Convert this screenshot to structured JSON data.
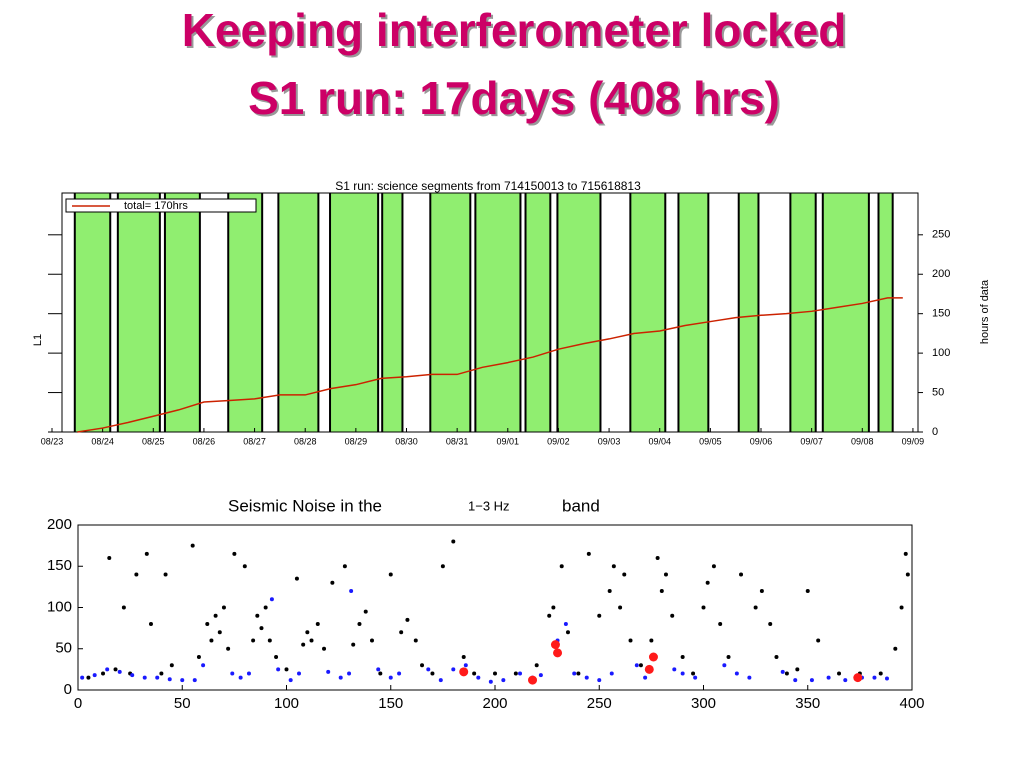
{
  "slide": {
    "title": [
      "Keeping interferometer locked",
      "S1 run: 17days (408 hrs)"
    ]
  },
  "chart_data": [
    {
      "type": "line",
      "title": "S1 run: science segments from 714150013 to 715618813",
      "ylabel": "L1",
      "y2label": "hours of data",
      "legend": "upper left",
      "xlim": [
        0,
        17.1
      ],
      "xticks": [
        {
          "value": 0,
          "label": "08/23"
        },
        {
          "value": 1,
          "label": "08/24"
        },
        {
          "value": 2,
          "label": "08/25"
        },
        {
          "value": 3,
          "label": "08/26"
        },
        {
          "value": 4,
          "label": "08/27"
        },
        {
          "value": 5,
          "label": "08/28"
        },
        {
          "value": 6,
          "label": "08/29"
        },
        {
          "value": 7,
          "label": "08/30"
        },
        {
          "value": 8,
          "label": "08/31"
        },
        {
          "value": 9,
          "label": "09/01"
        },
        {
          "value": 10,
          "label": "09/02"
        },
        {
          "value": 11,
          "label": "09/03"
        },
        {
          "value": 12,
          "label": "09/04"
        },
        {
          "value": 13,
          "label": "09/05"
        },
        {
          "value": 14,
          "label": "09/06"
        },
        {
          "value": 15,
          "label": "09/07"
        },
        {
          "value": 16,
          "label": "09/08"
        },
        {
          "value": 17,
          "label": "09/09"
        }
      ],
      "y2lim": [
        0,
        303
      ],
      "y2ticks": [
        0,
        50,
        100,
        150,
        200,
        250
      ],
      "segment_color": "#90ee70",
      "segments": [
        [
          0.45,
          1.15
        ],
        [
          1.3,
          2.13
        ],
        [
          2.23,
          2.92
        ],
        [
          3.48,
          4.15
        ],
        [
          4.47,
          5.26
        ],
        [
          5.49,
          6.44
        ],
        [
          6.52,
          6.92
        ],
        [
          7.47,
          8.26
        ],
        [
          8.36,
          9.25
        ],
        [
          9.35,
          9.84
        ],
        [
          9.98,
          10.83
        ],
        [
          11.42,
          12.11
        ],
        [
          12.37,
          12.96
        ],
        [
          13.56,
          13.95
        ],
        [
          14.58,
          15.08
        ],
        [
          15.22,
          16.13
        ],
        [
          16.32,
          16.6
        ]
      ],
      "series": [
        {
          "name": "total= 170hrs",
          "color": "#cc2200",
          "axis": "y2",
          "x": [
            0.5,
            1,
            1.5,
            2,
            2.5,
            3,
            3.5,
            4,
            4.5,
            5,
            5.5,
            6,
            6.5,
            7,
            7.5,
            8,
            8.5,
            9,
            9.5,
            10,
            10.5,
            11,
            11.5,
            12,
            12.5,
            13,
            13.5,
            14,
            14.5,
            15,
            15.5,
            16,
            16.5,
            16.8
          ],
          "values": [
            0,
            5,
            12,
            20,
            28,
            38,
            40,
            42,
            47,
            47,
            55,
            60,
            68,
            70,
            73,
            73,
            82,
            88,
            95,
            105,
            112,
            118,
            125,
            128,
            135,
            140,
            145,
            148,
            150,
            153,
            158,
            163,
            170,
            170
          ]
        }
      ]
    },
    {
      "type": "scatter",
      "title": [
        "Seismic Noise in the",
        "1−3 Hz",
        "band"
      ],
      "xlim": [
        0,
        400
      ],
      "xticks": [
        0,
        50,
        100,
        150,
        200,
        250,
        300,
        350,
        400
      ],
      "ylim": [
        0,
        200
      ],
      "yticks": [
        0,
        50,
        100,
        150,
        200
      ],
      "series": [
        {
          "color": "#000000",
          "x": [
            5,
            12,
            15,
            18,
            22,
            25,
            28,
            33,
            35,
            40,
            42,
            45,
            55,
            58,
            62,
            64,
            66,
            68,
            70,
            72,
            75,
            80,
            84,
            86,
            88,
            90,
            92,
            95,
            100,
            105,
            108,
            110,
            112,
            115,
            118,
            122,
            128,
            132,
            135,
            138,
            141,
            145,
            150,
            155,
            158,
            162,
            165,
            170,
            175,
            180,
            185,
            190,
            200,
            210,
            220,
            226,
            228,
            232,
            235,
            240,
            245,
            250,
            255,
            257,
            260,
            262,
            265,
            270,
            275,
            278,
            280,
            282,
            285,
            290,
            295,
            300,
            302,
            305,
            308,
            312,
            318,
            325,
            328,
            332,
            335,
            340,
            345,
            350,
            355,
            365,
            375,
            385,
            392,
            395,
            398,
            397
          ],
          "y": [
            15,
            20,
            160,
            25,
            100,
            20,
            140,
            165,
            80,
            20,
            140,
            30,
            175,
            40,
            80,
            60,
            90,
            70,
            100,
            50,
            165,
            150,
            60,
            90,
            75,
            100,
            60,
            40,
            25,
            135,
            55,
            70,
            60,
            80,
            50,
            130,
            150,
            55,
            80,
            95,
            60,
            20,
            140,
            70,
            85,
            60,
            30,
            20,
            150,
            180,
            40,
            20,
            20,
            20,
            30,
            90,
            100,
            150,
            70,
            20,
            165,
            90,
            120,
            150,
            100,
            140,
            60,
            30,
            60,
            160,
            120,
            140,
            90,
            40,
            20,
            100,
            130,
            150,
            80,
            40,
            140,
            100,
            120,
            80,
            40,
            20,
            25,
            120,
            60,
            20,
            20,
            20,
            50,
            100,
            140,
            165
          ]
        },
        {
          "color": "#1a1aff",
          "x": [
            2,
            8,
            14,
            20,
            26,
            32,
            38,
            44,
            50,
            56,
            60,
            74,
            78,
            82,
            96,
            102,
            106,
            120,
            126,
            130,
            144,
            150,
            154,
            168,
            174,
            180,
            186,
            192,
            198,
            204,
            212,
            218,
            222,
            230,
            234,
            238,
            244,
            250,
            256,
            268,
            272,
            286,
            290,
            296,
            310,
            316,
            322,
            338,
            344,
            352,
            360,
            368,
            376,
            382,
            388,
            93,
            131
          ],
          "y": [
            15,
            18,
            25,
            22,
            18,
            15,
            15,
            13,
            12,
            12,
            30,
            20,
            15,
            20,
            25,
            12,
            20,
            22,
            15,
            20,
            25,
            15,
            20,
            25,
            12,
            25,
            30,
            15,
            10,
            12,
            20,
            15,
            18,
            60,
            80,
            20,
            15,
            12,
            20,
            30,
            15,
            25,
            20,
            15,
            30,
            20,
            15,
            22,
            12,
            12,
            15,
            12,
            15,
            15,
            14,
            110,
            120
          ]
        },
        {
          "color": "#ff1a1a",
          "x": [
            185,
            218,
            229,
            230,
            274,
            276,
            374
          ],
          "y": [
            22,
            12,
            55,
            45,
            25,
            40,
            15
          ]
        }
      ]
    }
  ]
}
